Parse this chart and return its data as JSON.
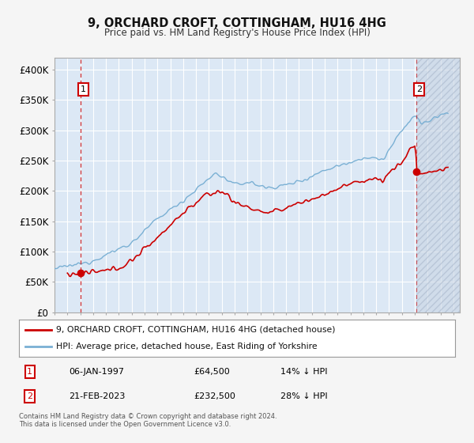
{
  "title": "9, ORCHARD CROFT, COTTINGHAM, HU16 4HG",
  "subtitle": "Price paid vs. HM Land Registry's House Price Index (HPI)",
  "legend_line1": "9, ORCHARD CROFT, COTTINGHAM, HU16 4HG (detached house)",
  "legend_line2": "HPI: Average price, detached house, East Riding of Yorkshire",
  "annotation1_date": "06-JAN-1997",
  "annotation1_price": "£64,500",
  "annotation1_hpi": "14% ↓ HPI",
  "annotation2_date": "21-FEB-2023",
  "annotation2_price": "£232,500",
  "annotation2_hpi": "28% ↓ HPI",
  "footnote": "Contains HM Land Registry data © Crown copyright and database right 2024.\nThis data is licensed under the Open Government Licence v3.0.",
  "price_color": "#cc0000",
  "hpi_color": "#7ab0d4",
  "marker1_x": 1997.04,
  "marker1_y": 64500,
  "marker2_x": 2023.13,
  "marker2_y": 232500,
  "vline1_x": 1997.04,
  "vline2_x": 2023.13,
  "xlim": [
    1995.0,
    2026.5
  ],
  "ylim": [
    0,
    420000
  ],
  "yticks": [
    0,
    50000,
    100000,
    150000,
    200000,
    250000,
    300000,
    350000,
    400000
  ],
  "ytick_labels": [
    "£0",
    "£50K",
    "£100K",
    "£150K",
    "£200K",
    "£250K",
    "£300K",
    "£350K",
    "£400K"
  ],
  "plot_bg_color": "#dce8f5",
  "grid_color": "#ffffff",
  "box_color": "#cc0000",
  "hatch_color": "#c0c8d8",
  "fig_bg_color": "#f5f5f5"
}
